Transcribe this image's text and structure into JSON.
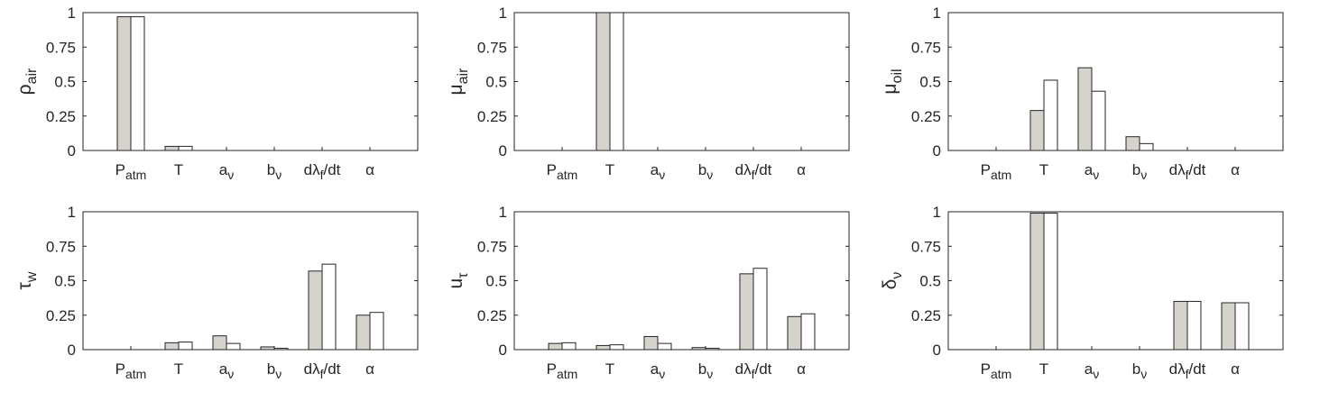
{
  "chart_data": [
    {
      "type": "bar",
      "ylabel": {
        "base": "ρ",
        "sub": "air"
      },
      "ylim": [
        0,
        1
      ],
      "yticks": [
        {
          "value": 0,
          "label": "0"
        },
        {
          "value": 0.25,
          "label": "0.25"
        },
        {
          "value": 0.5,
          "label": "0.5"
        },
        {
          "value": 0.75,
          "label": "0.75"
        },
        {
          "value": 1,
          "label": "1"
        }
      ],
      "categories": [
        {
          "base": "P",
          "sub": "atm"
        },
        {
          "base": "T",
          "sub": ""
        },
        {
          "base": "a",
          "sub": "ν"
        },
        {
          "base": "b",
          "sub": "ν"
        },
        {
          "base": "dλ",
          "sub": "f",
          "suffix": "/dt"
        },
        {
          "base": "α",
          "sub": ""
        }
      ],
      "series": [
        {
          "values": [
            0.97,
            0.03,
            0,
            0,
            0,
            0
          ],
          "color": "#d6d3cc"
        },
        {
          "values": [
            0.97,
            0.03,
            0,
            0,
            0,
            0
          ],
          "color": "#ffffff"
        }
      ]
    },
    {
      "type": "bar",
      "ylabel": {
        "base": "μ",
        "sub": "air"
      },
      "ylim": [
        0,
        1
      ],
      "yticks": [
        {
          "value": 0,
          "label": "0"
        },
        {
          "value": 0.25,
          "label": "0.25"
        },
        {
          "value": 0.5,
          "label": "0.5"
        },
        {
          "value": 0.75,
          "label": "0.75"
        },
        {
          "value": 1,
          "label": "1"
        }
      ],
      "categories": [
        {
          "base": "P",
          "sub": "atm"
        },
        {
          "base": "T",
          "sub": ""
        },
        {
          "base": "a",
          "sub": "ν"
        },
        {
          "base": "b",
          "sub": "ν"
        },
        {
          "base": "dλ",
          "sub": "f",
          "suffix": "/dt"
        },
        {
          "base": "α",
          "sub": ""
        }
      ],
      "series": [
        {
          "values": [
            0,
            1.0,
            0,
            0,
            0,
            0
          ],
          "color": "#d6d3cc"
        },
        {
          "values": [
            0,
            1.0,
            0,
            0,
            0,
            0
          ],
          "color": "#ffffff"
        }
      ]
    },
    {
      "type": "bar",
      "ylabel": {
        "base": "μ",
        "sub": "oil"
      },
      "ylim": [
        0,
        1
      ],
      "yticks": [
        {
          "value": 0,
          "label": "0"
        },
        {
          "value": 0.25,
          "label": "0.25"
        },
        {
          "value": 0.5,
          "label": "0.5"
        },
        {
          "value": 0.75,
          "label": "0.75"
        },
        {
          "value": 1,
          "label": "1"
        }
      ],
      "categories": [
        {
          "base": "P",
          "sub": "atm"
        },
        {
          "base": "T",
          "sub": ""
        },
        {
          "base": "a",
          "sub": "ν"
        },
        {
          "base": "b",
          "sub": "ν"
        },
        {
          "base": "dλ",
          "sub": "f",
          "suffix": "/dt"
        },
        {
          "base": "α",
          "sub": ""
        }
      ],
      "series": [
        {
          "values": [
            0,
            0.29,
            0.6,
            0.1,
            0,
            0
          ],
          "color": "#d6d3cc"
        },
        {
          "values": [
            0,
            0.51,
            0.43,
            0.05,
            0,
            0
          ],
          "color": "#ffffff"
        }
      ]
    },
    {
      "type": "bar",
      "ylabel": {
        "base": "τ",
        "sub": "w"
      },
      "ylim": [
        0,
        1
      ],
      "yticks": [
        {
          "value": 0,
          "label": "0"
        },
        {
          "value": 0.25,
          "label": "0.25"
        },
        {
          "value": 0.5,
          "label": "0.5"
        },
        {
          "value": 0.75,
          "label": "0.75"
        },
        {
          "value": 1,
          "label": "1"
        }
      ],
      "categories": [
        {
          "base": "P",
          "sub": "atm"
        },
        {
          "base": "T",
          "sub": ""
        },
        {
          "base": "a",
          "sub": "ν"
        },
        {
          "base": "b",
          "sub": "ν"
        },
        {
          "base": "dλ",
          "sub": "f",
          "suffix": "/dt"
        },
        {
          "base": "α",
          "sub": ""
        }
      ],
      "series": [
        {
          "values": [
            0,
            0.05,
            0.1,
            0.02,
            0.57,
            0.25
          ],
          "color": "#d6d3cc"
        },
        {
          "values": [
            0,
            0.055,
            0.045,
            0.01,
            0.62,
            0.27
          ],
          "color": "#ffffff"
        }
      ]
    },
    {
      "type": "bar",
      "ylabel": {
        "base": "u",
        "sub": "τ"
      },
      "ylim": [
        0,
        1
      ],
      "yticks": [
        {
          "value": 0,
          "label": "0"
        },
        {
          "value": 0.25,
          "label": "0.25"
        },
        {
          "value": 0.5,
          "label": "0.5"
        },
        {
          "value": 0.75,
          "label": "0.75"
        },
        {
          "value": 1,
          "label": "1"
        }
      ],
      "categories": [
        {
          "base": "P",
          "sub": "atm"
        },
        {
          "base": "T",
          "sub": ""
        },
        {
          "base": "a",
          "sub": "ν"
        },
        {
          "base": "b",
          "sub": "ν"
        },
        {
          "base": "dλ",
          "sub": "f",
          "suffix": "/dt"
        },
        {
          "base": "α",
          "sub": ""
        }
      ],
      "series": [
        {
          "values": [
            0.045,
            0.03,
            0.095,
            0.015,
            0.55,
            0.24
          ],
          "color": "#d6d3cc"
        },
        {
          "values": [
            0.05,
            0.035,
            0.045,
            0.01,
            0.59,
            0.26
          ],
          "color": "#ffffff"
        }
      ]
    },
    {
      "type": "bar",
      "ylabel": {
        "base": "δ",
        "sub": "ν"
      },
      "ylim": [
        0,
        1
      ],
      "yticks": [
        {
          "value": 0,
          "label": "0"
        },
        {
          "value": 0.25,
          "label": "0.25"
        },
        {
          "value": 0.5,
          "label": "0.5"
        },
        {
          "value": 0.75,
          "label": "0.75"
        },
        {
          "value": 1,
          "label": "1"
        }
      ],
      "categories": [
        {
          "base": "P",
          "sub": "atm"
        },
        {
          "base": "T",
          "sub": ""
        },
        {
          "base": "a",
          "sub": "ν"
        },
        {
          "base": "b",
          "sub": "ν"
        },
        {
          "base": "dλ",
          "sub": "f",
          "suffix": "/dt"
        },
        {
          "base": "α",
          "sub": ""
        }
      ],
      "series": [
        {
          "values": [
            0,
            0.99,
            0,
            0,
            0.35,
            0.34
          ],
          "color": "#d6d3cc"
        },
        {
          "values": [
            0,
            0.99,
            0,
            0,
            0.35,
            0.34
          ],
          "color": "#ffffff"
        }
      ]
    }
  ]
}
